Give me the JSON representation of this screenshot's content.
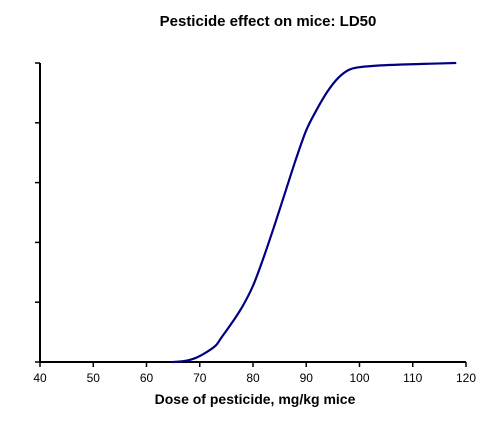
{
  "chart_data": {
    "type": "line",
    "title": "Pesticide effect on mice: LD50",
    "xlabel": "Dose of pesticide, mg/kg mice",
    "ylabel": "",
    "xlim": [
      40,
      120
    ],
    "ylim": [
      0,
      100
    ],
    "x_ticks": [
      "40",
      "50",
      "60",
      "70",
      "80",
      "90",
      "100",
      "110",
      "120"
    ],
    "y_tick_count": 6,
    "grid": false,
    "line_color": "#000080",
    "series": [
      {
        "x": [
          65,
          67,
          69,
          71,
          73,
          74,
          76,
          78,
          80,
          82,
          84,
          86,
          88,
          90,
          92,
          94,
          96,
          98,
          100,
          104,
          108,
          112,
          116,
          118
        ],
        "y": [
          0,
          0.3,
          1.2,
          3,
          5.5,
          8,
          13,
          18.5,
          25.5,
          35,
          45.5,
          56.5,
          67.5,
          77.5,
          84.5,
          90.5,
          95,
          97.7,
          98.6,
          99.2,
          99.5,
          99.7,
          99.9,
          100
        ]
      }
    ]
  }
}
